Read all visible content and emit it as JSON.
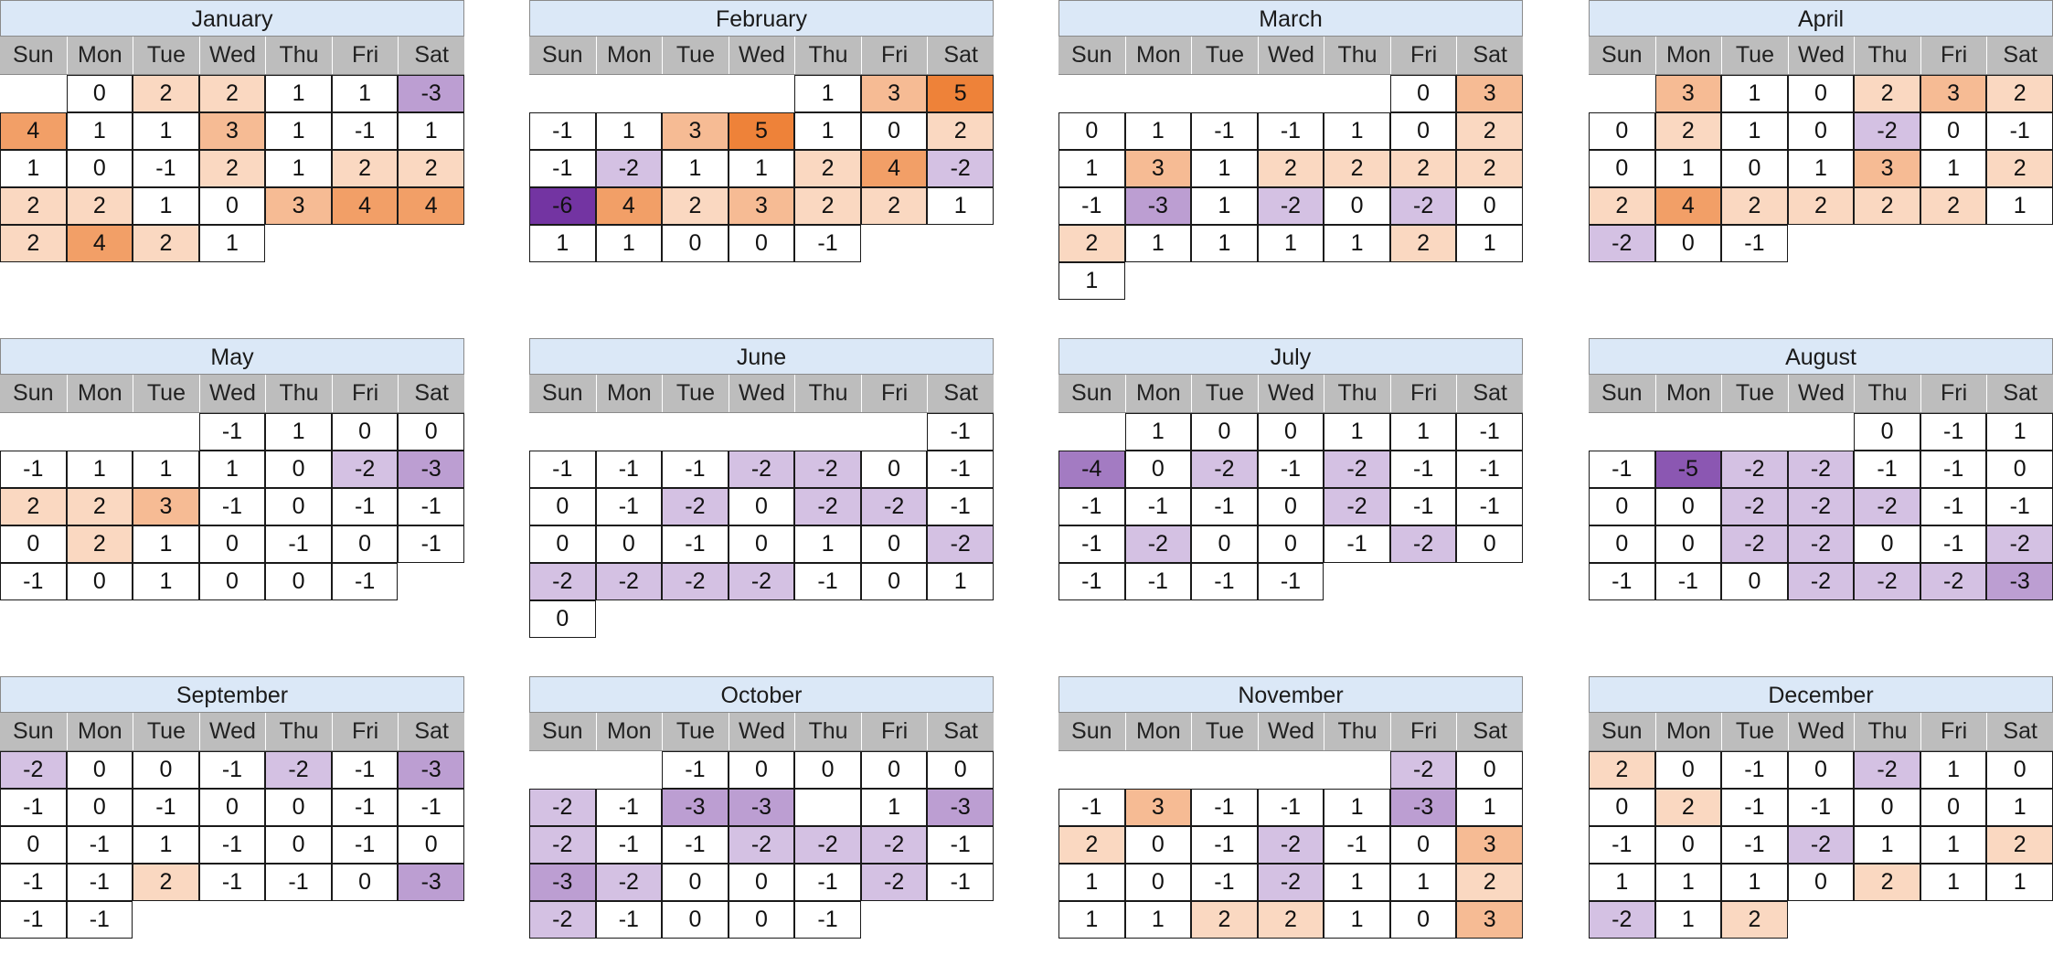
{
  "chart_data": {
    "type": "heatmap",
    "title": "",
    "weekdays": [
      "Sun",
      "Mon",
      "Tue",
      "Wed",
      "Thu",
      "Fri",
      "Sat"
    ],
    "color_scale": {
      "negative": "#7030a0",
      "neutral": "#ffffff",
      "positive": "#ed7d31",
      "min": -6,
      "max": 5
    },
    "months": [
      {
        "name": "January",
        "start_weekday": 1,
        "values": [
          0,
          2,
          2,
          1,
          1,
          -3,
          4,
          1,
          1,
          3,
          1,
          -1,
          1,
          1,
          0,
          -1,
          2,
          1,
          2,
          2,
          2,
          2,
          1,
          0,
          3,
          4,
          4,
          2,
          4,
          2,
          1
        ]
      },
      {
        "name": "February",
        "start_weekday": 4,
        "values": [
          1,
          3,
          5,
          -1,
          1,
          3,
          5,
          1,
          0,
          2,
          -1,
          -2,
          1,
          1,
          2,
          4,
          -2,
          -6,
          4,
          2,
          3,
          2,
          2,
          1,
          1,
          1,
          0,
          0,
          -1
        ]
      },
      {
        "name": "March",
        "start_weekday": 5,
        "values": [
          0,
          3,
          0,
          1,
          -1,
          -1,
          1,
          0,
          2,
          1,
          3,
          1,
          2,
          2,
          2,
          2,
          -1,
          -3,
          1,
          -2,
          0,
          -2,
          0,
          2,
          1,
          1,
          1,
          1,
          2,
          1,
          1
        ]
      },
      {
        "name": "April",
        "start_weekday": 1,
        "values": [
          3,
          1,
          0,
          2,
          3,
          2,
          0,
          2,
          1,
          0,
          -2,
          0,
          -1,
          0,
          1,
          0,
          1,
          3,
          1,
          2,
          2,
          4,
          2,
          2,
          2,
          2,
          1,
          -2,
          0,
          -1
        ]
      },
      {
        "name": "May",
        "start_weekday": 3,
        "values": [
          -1,
          1,
          0,
          0,
          -1,
          1,
          1,
          1,
          0,
          -2,
          -3,
          2,
          2,
          3,
          -1,
          0,
          -1,
          -1,
          0,
          2,
          1,
          0,
          -1,
          0,
          -1,
          -1,
          0,
          1,
          0,
          0,
          -1
        ]
      },
      {
        "name": "June",
        "start_weekday": 6,
        "values": [
          -1,
          -1,
          -1,
          -1,
          -2,
          -2,
          0,
          -1,
          0,
          -1,
          -2,
          0,
          -2,
          -2,
          -1,
          0,
          0,
          -1,
          0,
          1,
          0,
          -2,
          -2,
          -2,
          -2,
          -2,
          -1,
          0,
          1,
          0
        ]
      },
      {
        "name": "July",
        "start_weekday": 1,
        "values": [
          1,
          0,
          0,
          1,
          1,
          -1,
          -4,
          0,
          -2,
          -1,
          -2,
          -1,
          -1,
          -1,
          -1,
          -1,
          0,
          -2,
          -1,
          -1,
          -1,
          -2,
          0,
          0,
          -1,
          -2,
          0,
          -1,
          -1,
          -1,
          -1
        ]
      },
      {
        "name": "August",
        "start_weekday": 4,
        "values": [
          0,
          -1,
          1,
          -1,
          -5,
          -2,
          -2,
          -1,
          -1,
          0,
          0,
          0,
          -2,
          -2,
          -2,
          -1,
          -1,
          0,
          0,
          -2,
          -2,
          0,
          -1,
          -2,
          -1,
          -1,
          0,
          -2,
          -2,
          -2,
          -3
        ]
      },
      {
        "name": "September",
        "start_weekday": 0,
        "values": [
          -2,
          0,
          0,
          -1,
          -2,
          -1,
          -3,
          -1,
          0,
          -1,
          0,
          0,
          -1,
          -1,
          0,
          -1,
          1,
          -1,
          0,
          -1,
          0,
          -1,
          -1,
          2,
          -1,
          -1,
          0,
          -3,
          -1,
          -1
        ]
      },
      {
        "name": "October",
        "start_weekday": 2,
        "values": [
          -1,
          0,
          0,
          0,
          0,
          -2,
          -1,
          -3,
          -3,
          null,
          1,
          -3,
          -2,
          -1,
          -1,
          -2,
          -2,
          -2,
          -1,
          -3,
          -2,
          0,
          0,
          -1,
          -2,
          -1,
          -2,
          -1,
          0,
          0,
          -1
        ]
      },
      {
        "name": "November",
        "start_weekday": 5,
        "values": [
          -2,
          0,
          -1,
          3,
          -1,
          -1,
          1,
          -3,
          1,
          2,
          0,
          -1,
          -2,
          -1,
          0,
          3,
          1,
          0,
          -1,
          -2,
          1,
          1,
          2,
          1,
          1,
          2,
          2,
          1,
          0,
          3
        ]
      },
      {
        "name": "December",
        "start_weekday": 0,
        "values": [
          2,
          0,
          -1,
          0,
          -2,
          1,
          0,
          0,
          2,
          -1,
          -1,
          0,
          0,
          1,
          -1,
          0,
          -1,
          -2,
          1,
          1,
          2,
          1,
          1,
          1,
          0,
          2,
          1,
          1,
          -2,
          1,
          2
        ]
      }
    ]
  }
}
